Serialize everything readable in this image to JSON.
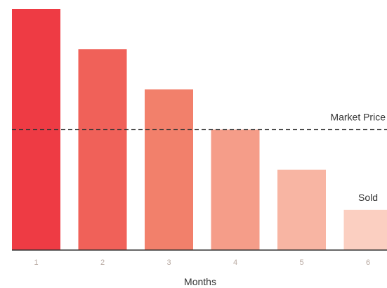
{
  "chart_data": {
    "type": "bar",
    "categories": [
      "1",
      "2",
      "3",
      "4",
      "5",
      "6"
    ],
    "values": [
      6,
      5,
      4,
      3,
      2,
      1
    ],
    "xlabel": "Months",
    "ylim": [
      0,
      6
    ],
    "grid": false,
    "reference_line": {
      "label": "Market Price",
      "value": 3
    },
    "annotations": [
      {
        "text": "Sold",
        "category": "6"
      }
    ],
    "colors": [
      "#ee3b44",
      "#f06159",
      "#f2806b",
      "#f59d89",
      "#f8b5a3",
      "#fbcfc1"
    ],
    "line_color": "#333333"
  }
}
